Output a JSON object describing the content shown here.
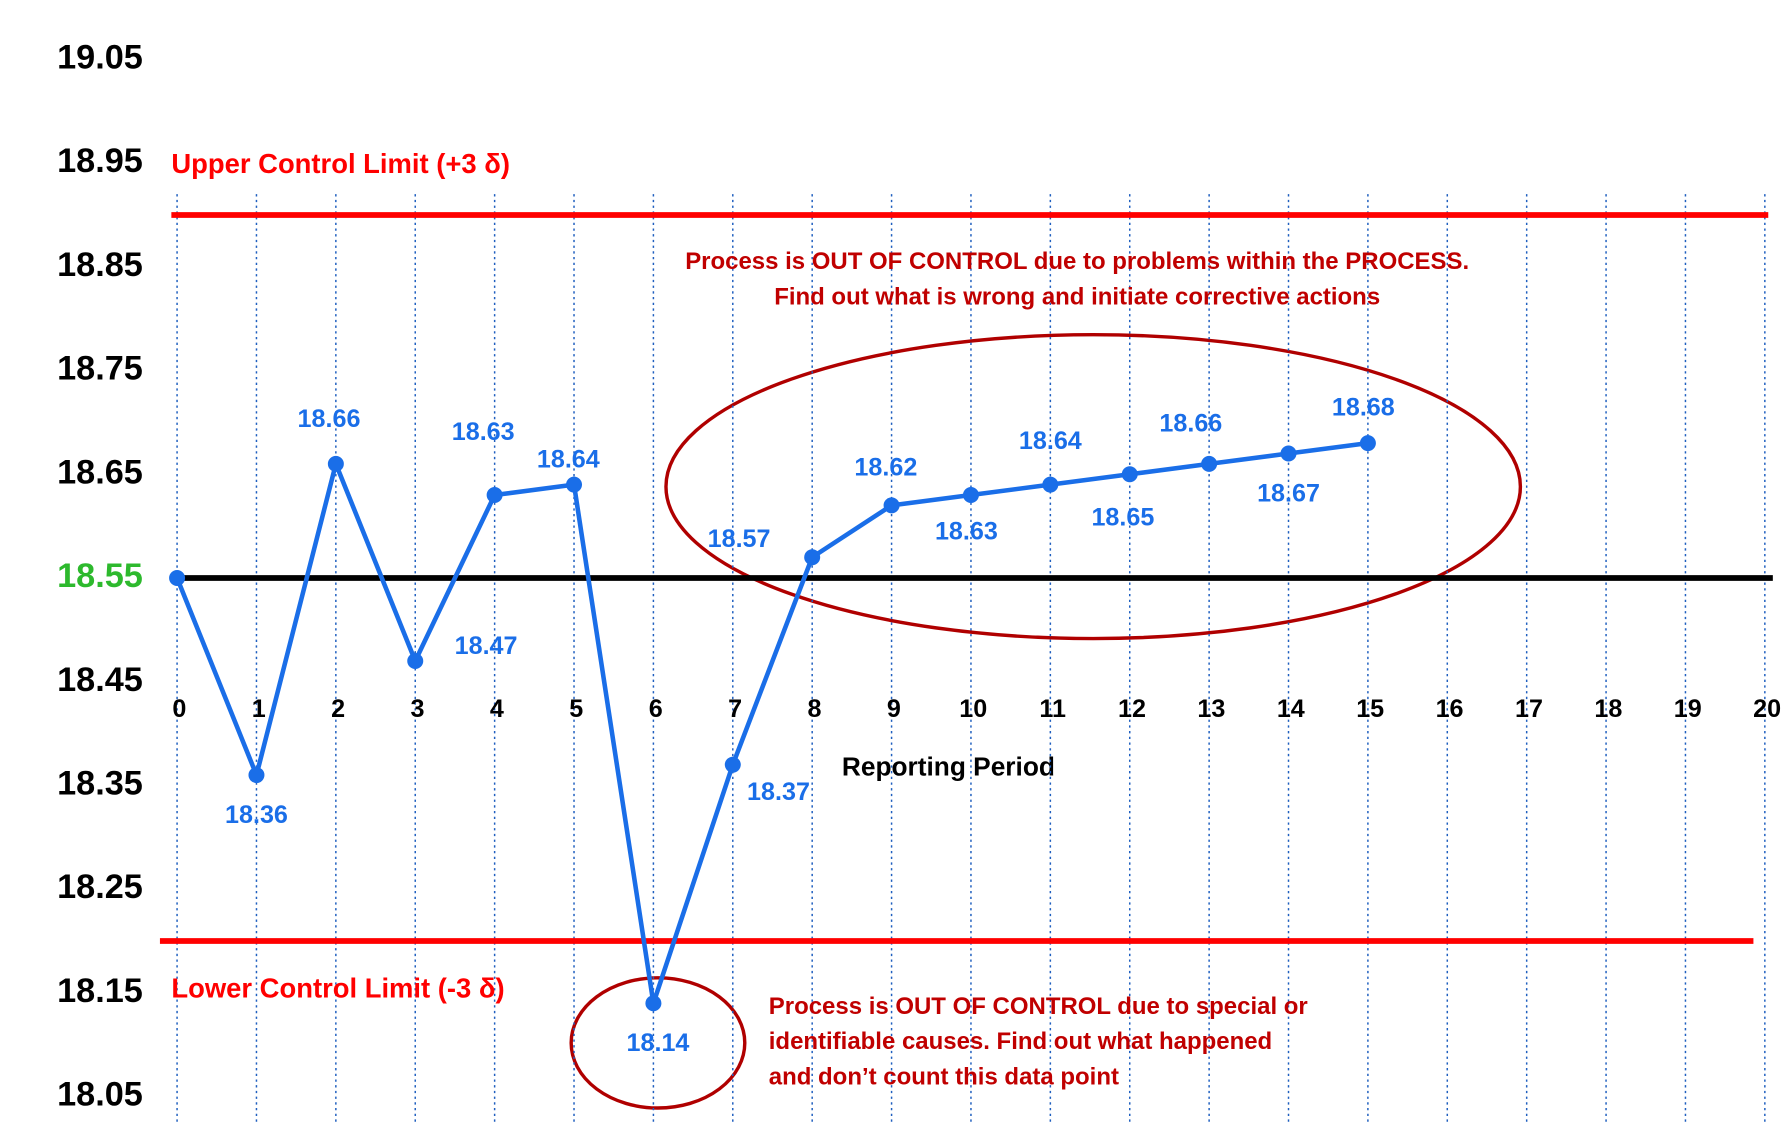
{
  "chart_data": {
    "type": "line",
    "xlabel": "Reporting Period",
    "x": [
      0,
      1,
      2,
      3,
      4,
      5,
      6,
      7,
      8,
      9,
      10,
      11,
      12,
      13,
      14,
      15
    ],
    "values": [
      18.55,
      18.36,
      18.66,
      18.47,
      18.63,
      18.64,
      18.14,
      18.37,
      18.57,
      18.62,
      18.63,
      18.64,
      18.65,
      18.66,
      18.67,
      18.68
    ],
    "value_labels": [
      null,
      "18.36",
      "18.66",
      "18.47",
      "18.63",
      "18.64",
      "18.14",
      "18.37",
      "18.57",
      "18.62",
      "18.63",
      "18.64",
      "18.65",
      "18.66",
      "18.67",
      "18.68"
    ],
    "color": "#1a6ee8",
    "xlim": [
      0,
      20
    ],
    "xticks": [
      0,
      1,
      2,
      3,
      4,
      5,
      6,
      7,
      8,
      9,
      10,
      11,
      12,
      13,
      14,
      15,
      16,
      17,
      18,
      19,
      20
    ],
    "ylim": [
      18.05,
      19.05
    ],
    "yticks": [
      18.05,
      18.15,
      18.25,
      18.35,
      18.45,
      18.55,
      18.65,
      18.75,
      18.85,
      18.95,
      19.05
    ],
    "grid": true,
    "control_lines": [
      {
        "label": "Upper Control Limit (+3 δ)",
        "value": 18.9,
        "color": "#ff0000"
      },
      {
        "value": 18.55,
        "color": "#000000",
        "tick_color": "#2db92d"
      },
      {
        "label": "Lower Control Limit (-3 δ)",
        "value": 18.2,
        "color": "#ff0000"
      }
    ],
    "annotations": [
      {
        "lines": [
          "Process is OUT OF CONTROL due to problems within the PROCESS.",
          "Find out what is wrong and initiate corrective actions"
        ],
        "color": "#c00000"
      },
      {
        "lines": [
          "Process is OUT OF CONTROL due to special or",
          "identifiable causes. Find out what happened",
          "and don’t count this data point"
        ],
        "color": "#c00000"
      }
    ]
  }
}
